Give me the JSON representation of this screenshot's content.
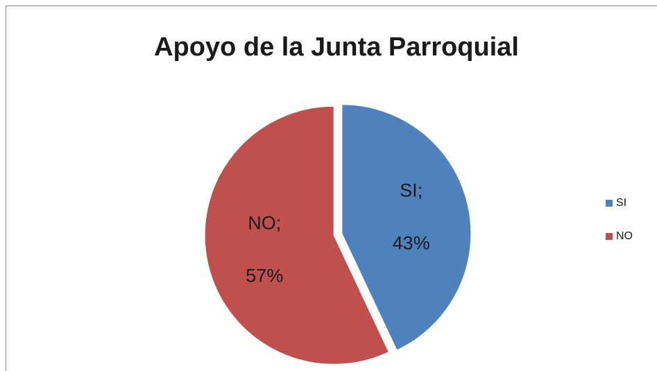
{
  "chart_data": {
    "type": "pie",
    "title": "Apoyo de la Junta Parroquial",
    "categories": [
      "SI",
      "NO"
    ],
    "values": [
      43,
      57
    ],
    "value_labels": [
      "SI; 43%",
      "NO; 57%"
    ],
    "colors": [
      "#4f81bd",
      "#c0504d"
    ],
    "legend": "right"
  }
}
